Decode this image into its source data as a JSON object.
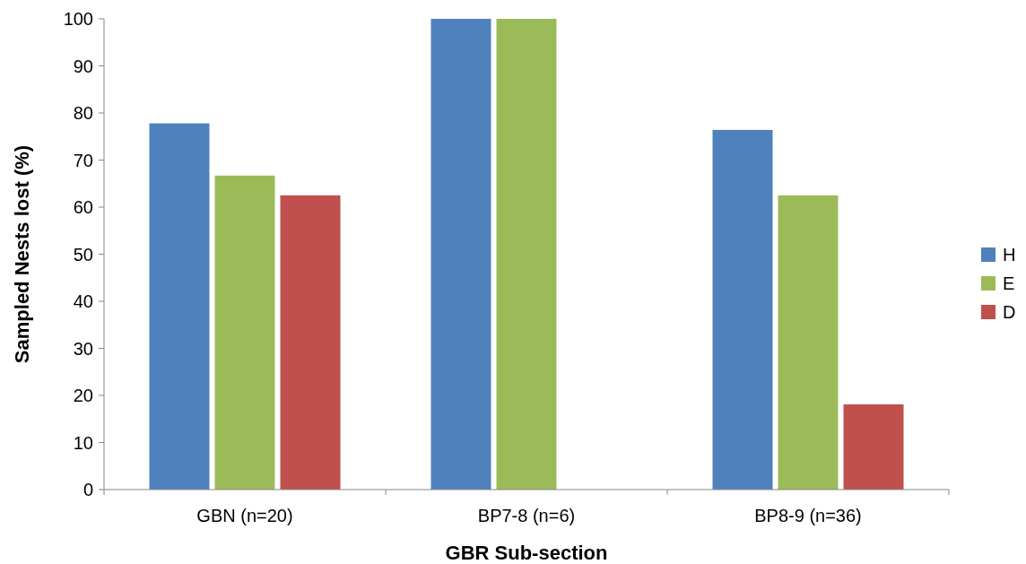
{
  "chart_data": {
    "type": "bar",
    "xlabel": "GBR Sub-section",
    "ylabel": "Sampled Nests lost (%)",
    "categories": [
      "GBN (n=20)",
      "BP7-8 (n=6)",
      "BP8-9 (n=36)"
    ],
    "series": [
      {
        "name": "H",
        "color": "#4f81bd",
        "values": [
          77.8,
          100,
          76.4
        ]
      },
      {
        "name": "E",
        "color": "#9bbb59",
        "values": [
          66.7,
          100,
          62.5
        ]
      },
      {
        "name": "D",
        "color": "#c0504d",
        "values": [
          62.5,
          null,
          18.1
        ]
      }
    ],
    "ylim": [
      0,
      100
    ],
    "yticks": [
      0,
      10,
      20,
      30,
      40,
      50,
      60,
      70,
      80,
      90,
      100
    ],
    "grid": false,
    "legend": "right"
  }
}
